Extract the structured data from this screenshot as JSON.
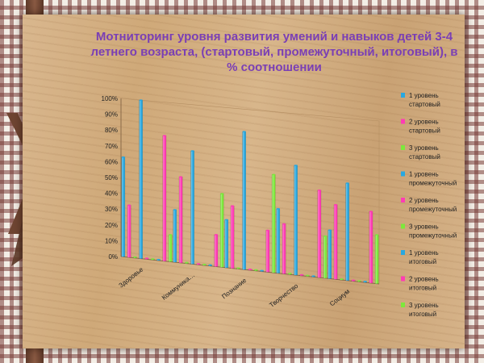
{
  "chart_data": {
    "type": "bar",
    "title": "Мотниторинг уровня  развития умений и навыков  детей 3-4 летнего возраста, (стартовый, промежуточный, итоговый), в % соотношении",
    "categories": [
      "Здоровье",
      "Коммуника…",
      "Познание",
      "Творчество",
      "Социум"
    ],
    "ylim": [
      0,
      100
    ],
    "yticks": [
      "0%",
      "10%",
      "20%",
      "30%",
      "40%",
      "50%",
      "60%",
      "70%",
      "80%",
      "90%",
      "100%"
    ],
    "grid": false,
    "legend_position": "right",
    "series": [
      {
        "name": "1 уровень стартовый",
        "color": "#29a8e0",
        "values": [
          63,
          33,
          30,
          40,
          30
        ]
      },
      {
        "name": "2 уровень стартовый",
        "color": "#ff3cb4",
        "values": [
          33,
          54,
          39,
          31,
          46
        ]
      },
      {
        "name": "3 уровень стартовый",
        "color": "#7de83c",
        "values": [
          0,
          0,
          0,
          0,
          0
        ]
      },
      {
        "name": "1 уровень промежуточный",
        "color": "#29a8e0",
        "values": [
          100,
          71,
          86,
          68,
          60
        ]
      },
      {
        "name": "2 уровень промежуточный",
        "color": "#ff3cb4",
        "values": [
          0,
          0,
          0,
          0,
          0
        ]
      },
      {
        "name": "3 уровень промежуточный",
        "color": "#7de83c",
        "values": [
          0,
          0,
          0,
          0,
          0
        ]
      },
      {
        "name": "1 уровень итоговый",
        "color": "#29a8e0",
        "values": [
          0,
          0,
          0,
          0,
          0
        ]
      },
      {
        "name": "2 уровень итоговый",
        "color": "#ff3cb4",
        "values": [
          79,
          20,
          26,
          54,
          44
        ]
      },
      {
        "name": "3 уровень итоговый",
        "color": "#7de83c",
        "values": [
          17,
          46,
          61,
          26,
          30
        ]
      }
    ]
  }
}
